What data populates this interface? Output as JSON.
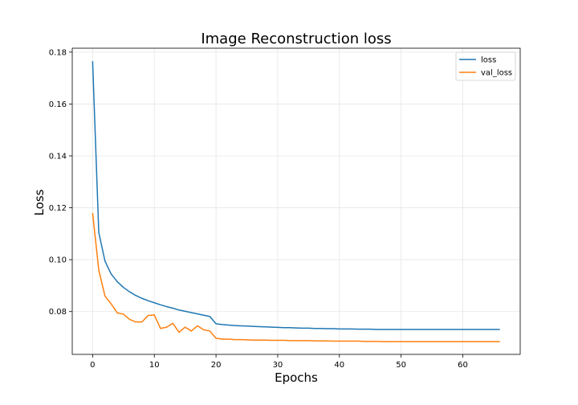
{
  "chart_data": {
    "type": "line",
    "title": "Image Reconstruction loss",
    "xlabel": "Epochs",
    "ylabel": "Loss",
    "xlim": [
      -3.3,
      69.3
    ],
    "ylim": [
      0.0635,
      0.1815
    ],
    "xticks": [
      0,
      10,
      20,
      30,
      40,
      50,
      60
    ],
    "yticks": [
      0.08,
      0.1,
      0.12,
      0.14,
      0.16,
      0.18
    ],
    "grid": true,
    "legend_position": "top-right",
    "x": [
      0,
      1,
      2,
      3,
      4,
      5,
      6,
      7,
      8,
      9,
      10,
      11,
      12,
      13,
      14,
      15,
      16,
      17,
      18,
      19,
      20,
      21,
      22,
      23,
      24,
      25,
      26,
      27,
      28,
      29,
      30,
      31,
      32,
      33,
      34,
      35,
      36,
      37,
      38,
      39,
      40,
      41,
      42,
      43,
      44,
      45,
      46,
      47,
      48,
      49,
      50,
      51,
      52,
      53,
      54,
      55,
      56,
      57,
      58,
      59,
      60,
      61,
      62,
      63,
      64,
      65,
      66
    ],
    "series": [
      {
        "name": "loss",
        "color": "#1f77b4",
        "values": [
          0.1765,
          0.1105,
          0.0995,
          0.0945,
          0.0915,
          0.0893,
          0.0876,
          0.0862,
          0.0851,
          0.0842,
          0.0834,
          0.0826,
          0.0819,
          0.0813,
          0.0806,
          0.0801,
          0.0796,
          0.0791,
          0.0786,
          0.0781,
          0.0753,
          0.075,
          0.0748,
          0.0746,
          0.0745,
          0.0744,
          0.0743,
          0.0742,
          0.0741,
          0.074,
          0.0739,
          0.0738,
          0.0738,
          0.0737,
          0.0736,
          0.0736,
          0.0735,
          0.0735,
          0.0734,
          0.0734,
          0.0733,
          0.0733,
          0.0733,
          0.0732,
          0.0732,
          0.0732,
          0.0731,
          0.0731,
          0.0731,
          0.0731,
          0.0731,
          0.0731,
          0.0731,
          0.0731,
          0.0731,
          0.0731,
          0.0731,
          0.0731,
          0.0731,
          0.0731,
          0.0731,
          0.0731,
          0.0731,
          0.0731,
          0.0731,
          0.0731,
          0.0731
        ]
      },
      {
        "name": "val_loss",
        "color": "#ff7f0e",
        "values": [
          0.118,
          0.096,
          0.086,
          0.083,
          0.0795,
          0.079,
          0.077,
          0.076,
          0.076,
          0.0785,
          0.0787,
          0.0735,
          0.074,
          0.0755,
          0.072,
          0.074,
          0.0725,
          0.0745,
          0.073,
          0.0725,
          0.0697,
          0.0694,
          0.0694,
          0.0692,
          0.0692,
          0.0691,
          0.069,
          0.069,
          0.069,
          0.0689,
          0.0689,
          0.0689,
          0.0688,
          0.0688,
          0.0688,
          0.0688,
          0.0687,
          0.0687,
          0.0687,
          0.0686,
          0.0686,
          0.0686,
          0.0686,
          0.0686,
          0.0685,
          0.0685,
          0.0685,
          0.0684,
          0.0684,
          0.0684,
          0.0684,
          0.0684,
          0.0684,
          0.0684,
          0.0684,
          0.0684,
          0.0684,
          0.0684,
          0.0684,
          0.0684,
          0.0684,
          0.0684,
          0.0684,
          0.0684,
          0.0684,
          0.0684,
          0.0684
        ]
      }
    ]
  }
}
